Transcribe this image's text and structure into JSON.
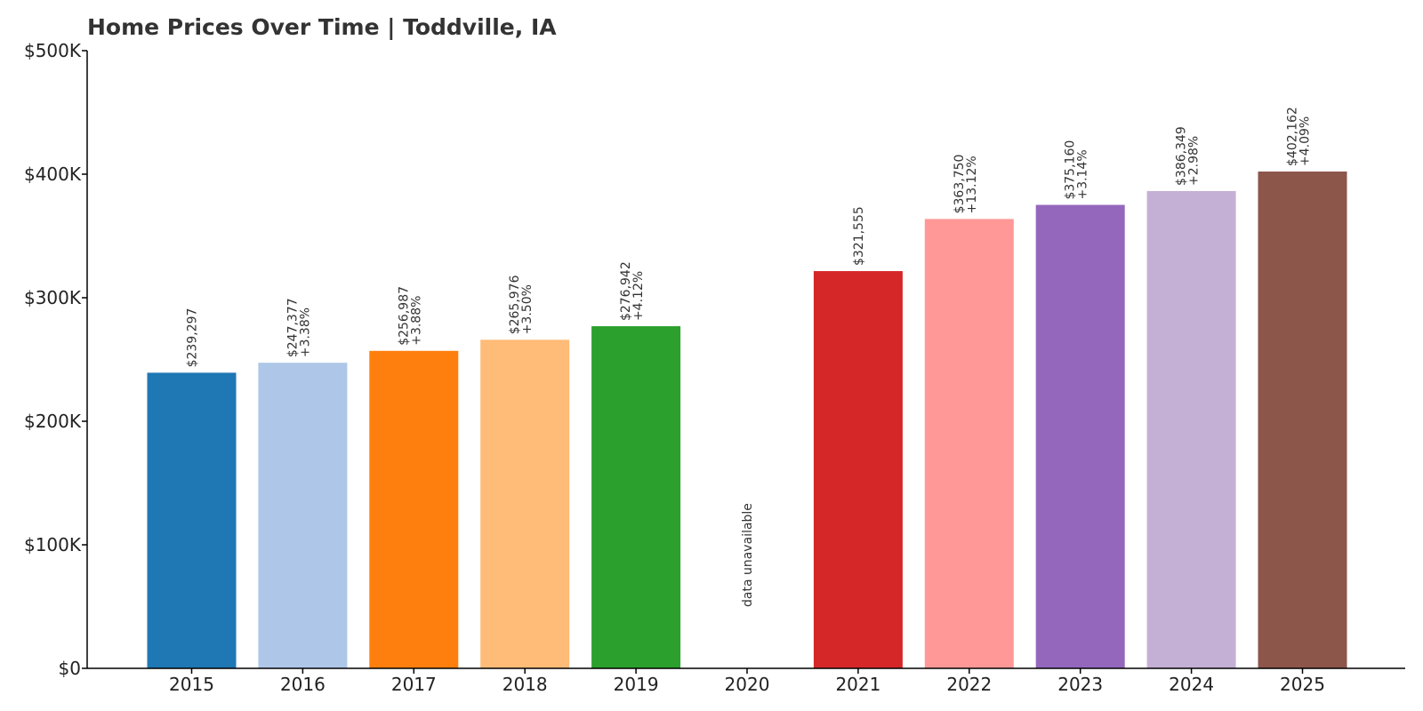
{
  "chart_data": {
    "type": "bar",
    "title": "Home Prices Over Time | Toddville, IA",
    "xlabel": "",
    "ylabel": "",
    "ylim": [
      0,
      500000
    ],
    "yticks": [
      {
        "value": 0,
        "label": "$0"
      },
      {
        "value": 100000,
        "label": "$100K"
      },
      {
        "value": 200000,
        "label": "$200K"
      },
      {
        "value": 300000,
        "label": "$300K"
      },
      {
        "value": 400000,
        "label": "$400K"
      },
      {
        "value": 500000,
        "label": "$500K"
      }
    ],
    "categories": [
      "2015",
      "2016",
      "2017",
      "2018",
      "2019",
      "2020",
      "2021",
      "2022",
      "2023",
      "2024",
      "2025"
    ],
    "values": [
      239297,
      247377,
      256987,
      265976,
      276942,
      null,
      321555,
      363750,
      375160,
      386349,
      402162
    ],
    "value_labels": [
      "$239,297",
      "$247,377",
      "$256,987",
      "$265,976",
      "$276,942",
      "data unavailable",
      "$321,555",
      "$363,750",
      "$375,160",
      "$386,349",
      "$402,162"
    ],
    "change_labels": [
      "",
      "+3.38%",
      "+3.88%",
      "+3.50%",
      "+4.12%",
      "",
      "",
      "+13.12%",
      "+3.14%",
      "+2.98%",
      "+4.09%"
    ],
    "colors": [
      "#1f77b4",
      "#aec7e8",
      "#ff7f0e",
      "#ffbb78",
      "#2ca02c",
      "#98df8a",
      "#d62728",
      "#ff9896",
      "#9467bd",
      "#c5b0d5",
      "#8c564b"
    ],
    "grid": false,
    "legend": "none"
  }
}
